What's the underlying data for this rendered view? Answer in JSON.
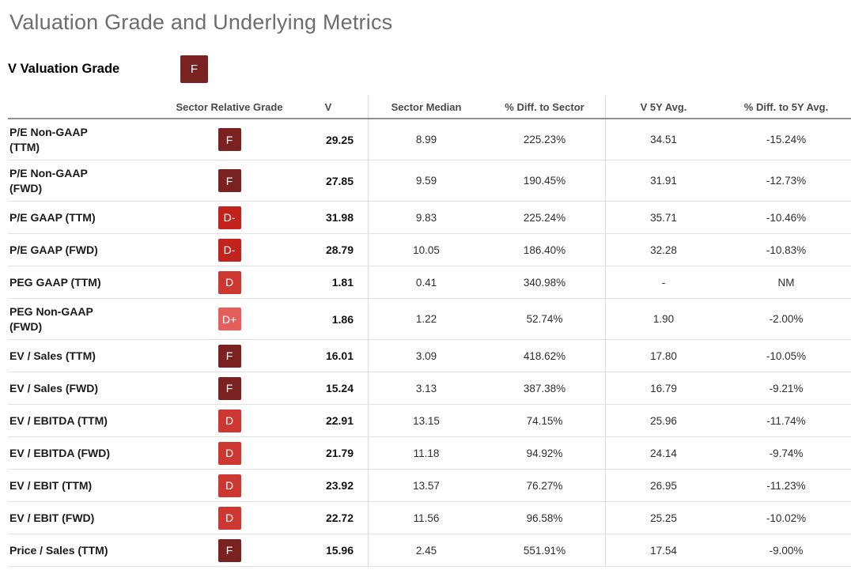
{
  "page_title": "Valuation Grade and Underlying Metrics",
  "section": {
    "title": "V Valuation Grade",
    "grade": "F",
    "grade_color": "#7a2121"
  },
  "grade_colors": {
    "F": "#7a2121",
    "D-": "#c2231d",
    "D": "#cd3732",
    "D+": "#e25f5b"
  },
  "table": {
    "headers": {
      "metric": "",
      "grade": "Sector Relative Grade",
      "v": "V",
      "sector_median": "Sector Median",
      "pct_diff_sector": "% Diff. to Sector",
      "v_5y_avg": "V 5Y Avg.",
      "pct_diff_5y_avg": "% Diff. to 5Y Avg."
    },
    "rows": [
      {
        "metric": "P/E Non-GAAP\n(TTM)",
        "grade": "F",
        "grade_color": "#7a2121",
        "v": "29.25",
        "sector_median": "8.99",
        "pct_diff_sector": "225.23%",
        "v_5y_avg": "34.51",
        "pct_diff_5y_avg": "-15.24%"
      },
      {
        "metric": "P/E Non-GAAP\n(FWD)",
        "grade": "F",
        "grade_color": "#7a2121",
        "v": "27.85",
        "sector_median": "9.59",
        "pct_diff_sector": "190.45%",
        "v_5y_avg": "31.91",
        "pct_diff_5y_avg": "-12.73%"
      },
      {
        "metric": "P/E GAAP (TTM)",
        "grade": "D-",
        "grade_color": "#c2231d",
        "v": "31.98",
        "sector_median": "9.83",
        "pct_diff_sector": "225.24%",
        "v_5y_avg": "35.71",
        "pct_diff_5y_avg": "-10.46%"
      },
      {
        "metric": "P/E GAAP (FWD)",
        "grade": "D-",
        "grade_color": "#c2231d",
        "v": "28.79",
        "sector_median": "10.05",
        "pct_diff_sector": "186.40%",
        "v_5y_avg": "32.28",
        "pct_diff_5y_avg": "-10.83%"
      },
      {
        "metric": "PEG GAAP (TTM)",
        "grade": "D",
        "grade_color": "#cd3732",
        "v": "1.81",
        "sector_median": "0.41",
        "pct_diff_sector": "340.98%",
        "v_5y_avg": "-",
        "pct_diff_5y_avg": "NM"
      },
      {
        "metric": "PEG Non-GAAP\n(FWD)",
        "grade": "D+",
        "grade_color": "#e25f5b",
        "v": "1.86",
        "sector_median": "1.22",
        "pct_diff_sector": "52.74%",
        "v_5y_avg": "1.90",
        "pct_diff_5y_avg": "-2.00%"
      },
      {
        "metric": "EV / Sales (TTM)",
        "grade": "F",
        "grade_color": "#7a2121",
        "v": "16.01",
        "sector_median": "3.09",
        "pct_diff_sector": "418.62%",
        "v_5y_avg": "17.80",
        "pct_diff_5y_avg": "-10.05%"
      },
      {
        "metric": "EV / Sales (FWD)",
        "grade": "F",
        "grade_color": "#7a2121",
        "v": "15.24",
        "sector_median": "3.13",
        "pct_diff_sector": "387.38%",
        "v_5y_avg": "16.79",
        "pct_diff_5y_avg": "-9.21%"
      },
      {
        "metric": "EV / EBITDA (TTM)",
        "grade": "D",
        "grade_color": "#cd3732",
        "v": "22.91",
        "sector_median": "13.15",
        "pct_diff_sector": "74.15%",
        "v_5y_avg": "25.96",
        "pct_diff_5y_avg": "-11.74%"
      },
      {
        "metric": "EV / EBITDA (FWD)",
        "grade": "D",
        "grade_color": "#cd3732",
        "v": "21.79",
        "sector_median": "11.18",
        "pct_diff_sector": "94.92%",
        "v_5y_avg": "24.14",
        "pct_diff_5y_avg": "-9.74%"
      },
      {
        "metric": "EV / EBIT (TTM)",
        "grade": "D",
        "grade_color": "#cd3732",
        "v": "23.92",
        "sector_median": "13.57",
        "pct_diff_sector": "76.27%",
        "v_5y_avg": "26.95",
        "pct_diff_5y_avg": "-11.23%"
      },
      {
        "metric": "EV / EBIT (FWD)",
        "grade": "D",
        "grade_color": "#cd3732",
        "v": "22.72",
        "sector_median": "11.56",
        "pct_diff_sector": "96.58%",
        "v_5y_avg": "25.25",
        "pct_diff_5y_avg": "-10.02%"
      },
      {
        "metric": "Price / Sales (TTM)",
        "grade": "F",
        "grade_color": "#7a2121",
        "v": "15.96",
        "sector_median": "2.45",
        "pct_diff_sector": "551.91%",
        "v_5y_avg": "17.54",
        "pct_diff_5y_avg": "-9.00%"
      }
    ]
  }
}
